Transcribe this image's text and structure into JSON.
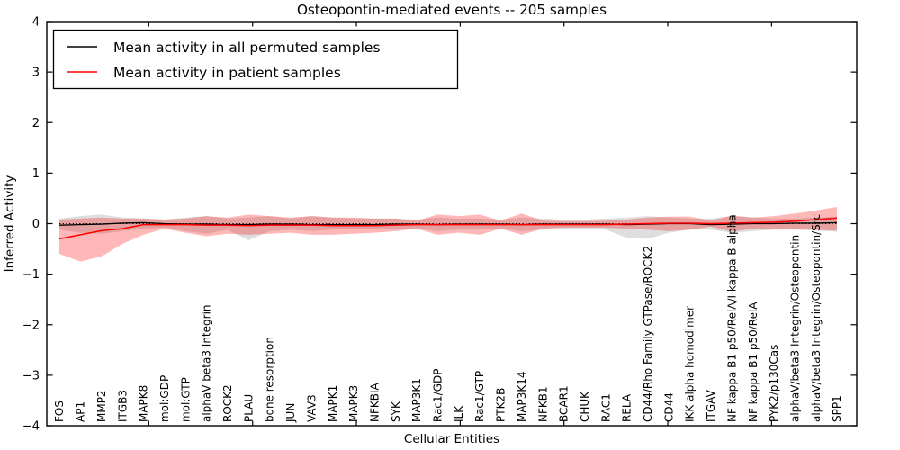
{
  "chart_data": {
    "type": "line",
    "title": "Osteopontin-mediated events -- 205 samples",
    "xlabel": "Cellular Entities",
    "ylabel": "Inferred Activity",
    "ylim": [
      -4,
      4
    ],
    "yticks": [
      -4,
      -3,
      -2,
      -1,
      0,
      1,
      2,
      3,
      4
    ],
    "grid": false,
    "zero_line": {
      "value": 0,
      "style": "dotted",
      "color": "#000000"
    },
    "legend": {
      "position": "upper left",
      "items": [
        {
          "label": "Mean activity in all permuted samples",
          "color": "#000000"
        },
        {
          "label": "Mean activity in patient samples",
          "color": "#ff0000"
        }
      ]
    },
    "categories": [
      "FOS",
      "AP1",
      "MMP2",
      "ITGB3",
      "MAPK8",
      "mol:GDP",
      "mol:GTP",
      "alphaV beta3 Integrin",
      "ROCK2",
      "PLAU",
      "bone resorption",
      "JUN",
      "VAV3",
      "MAPK1",
      "MAPK3",
      "NFKBIA",
      "SYK",
      "MAP3K1",
      "Rac1/GDP",
      "ILK",
      "Rac1/GTP",
      "PTK2B",
      "MAP3K14",
      "NFKB1",
      "BCAR1",
      "CHUK",
      "RAC1",
      "RELA",
      "CD44/Rho Family GTPase/ROCK2",
      "CD44",
      "IKK alpha homodimer",
      "ITGAV",
      "NF kappa B1 p50/RelA/I kappa B alpha",
      "NF kappa B1 p50/RelA",
      "PYK2/p130Cas",
      "alphaV/beta3 Integrin/Osteopontin",
      "alphaV/beta3 Integrin/Osteopontin/Src",
      "SPP1"
    ],
    "series": [
      {
        "name": "Mean activity in all permuted samples",
        "color": "#000000",
        "width": 1.3,
        "values": [
          -0.03,
          -0.02,
          -0.01,
          0.01,
          0.02,
          0.0,
          -0.01,
          -0.01,
          -0.02,
          -0.02,
          -0.01,
          -0.01,
          -0.02,
          -0.02,
          -0.02,
          -0.02,
          -0.01,
          -0.01,
          -0.02,
          -0.01,
          -0.01,
          -0.01,
          -0.02,
          -0.01,
          -0.01,
          -0.01,
          -0.01,
          -0.02,
          -0.01,
          0.0,
          0.0,
          -0.02,
          -0.01,
          0.0,
          0.0,
          0.01,
          0.01,
          0.02
        ]
      },
      {
        "name": "Mean activity in patient samples",
        "color": "#ff0000",
        "width": 1.5,
        "values": [
          -0.3,
          -0.22,
          -0.14,
          -0.1,
          -0.02,
          -0.02,
          -0.02,
          -0.03,
          -0.03,
          -0.04,
          -0.03,
          -0.03,
          -0.03,
          -0.04,
          -0.04,
          -0.04,
          -0.03,
          -0.02,
          -0.02,
          -0.02,
          -0.02,
          -0.02,
          -0.02,
          -0.02,
          -0.02,
          -0.02,
          -0.02,
          -0.01,
          0.0,
          0.01,
          0.01,
          0.0,
          0.01,
          0.02,
          0.03,
          0.05,
          0.08,
          0.11
        ]
      }
    ],
    "bands": [
      {
        "name": "permuted-samples-range",
        "color": "#999999",
        "opacity": 0.32,
        "lower": [
          -0.12,
          -0.18,
          -0.2,
          -0.15,
          -0.1,
          -0.08,
          -0.15,
          -0.2,
          -0.12,
          -0.33,
          -0.15,
          -0.12,
          -0.15,
          -0.12,
          -0.1,
          -0.12,
          -0.1,
          -0.1,
          -0.15,
          -0.12,
          -0.12,
          -0.1,
          -0.15,
          -0.12,
          -0.1,
          -0.1,
          -0.12,
          -0.28,
          -0.3,
          -0.18,
          -0.12,
          -0.12,
          -0.18,
          -0.15,
          -0.12,
          -0.12,
          -0.14,
          -0.16
        ],
        "upper": [
          0.1,
          0.15,
          0.18,
          0.12,
          0.1,
          0.08,
          0.12,
          0.15,
          0.1,
          0.12,
          0.15,
          0.1,
          0.15,
          0.12,
          0.1,
          0.1,
          0.1,
          0.08,
          0.12,
          0.1,
          0.1,
          0.08,
          0.12,
          0.1,
          0.08,
          0.08,
          0.1,
          0.12,
          0.15,
          0.12,
          0.1,
          0.1,
          0.15,
          0.12,
          0.1,
          0.1,
          0.12,
          0.14
        ]
      },
      {
        "name": "patient-samples-range",
        "color": "#ff0000",
        "opacity": 0.28,
        "lower": [
          -0.6,
          -0.75,
          -0.65,
          -0.4,
          -0.22,
          -0.1,
          -0.18,
          -0.25,
          -0.2,
          -0.22,
          -0.2,
          -0.18,
          -0.22,
          -0.22,
          -0.2,
          -0.18,
          -0.15,
          -0.1,
          -0.22,
          -0.18,
          -0.22,
          -0.1,
          -0.22,
          -0.1,
          -0.08,
          -0.08,
          -0.08,
          -0.1,
          -0.12,
          -0.15,
          -0.12,
          -0.06,
          -0.16,
          -0.1,
          -0.1,
          -0.1,
          -0.12,
          -0.14
        ],
        "upper": [
          0.08,
          0.1,
          0.12,
          0.1,
          0.1,
          0.08,
          0.1,
          0.15,
          0.12,
          0.18,
          0.15,
          0.12,
          0.15,
          0.12,
          0.12,
          0.1,
          0.1,
          0.06,
          0.18,
          0.15,
          0.18,
          0.06,
          0.2,
          0.06,
          0.05,
          0.05,
          0.06,
          0.08,
          0.12,
          0.14,
          0.14,
          0.06,
          0.16,
          0.12,
          0.15,
          0.2,
          0.26,
          0.33
        ]
      }
    ]
  }
}
